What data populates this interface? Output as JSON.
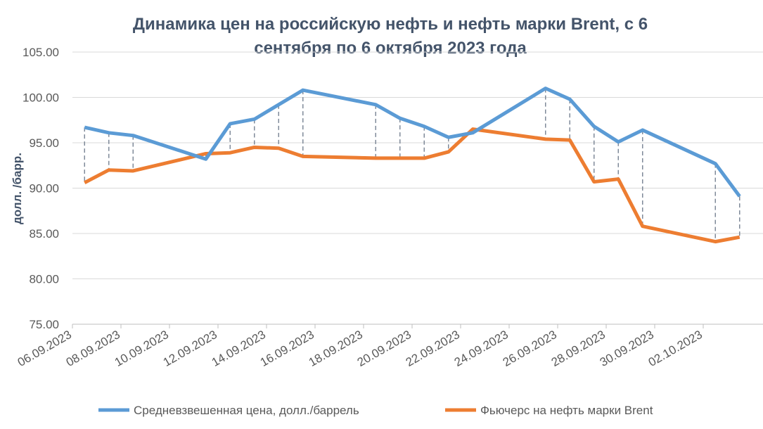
{
  "chart_data": {
    "type": "line",
    "title": "Динамика цен на российскую нефть и нефть марки Brent, с 6 сентября по 6 октября 2023 года",
    "ylabel": "долл. /барр.",
    "xlabel": "",
    "ylim": [
      75,
      105
    ],
    "yticks": [
      "75.00",
      "80.00",
      "85.00",
      "90.00",
      "95.00",
      "100.00",
      "105.00"
    ],
    "xlim": [
      "06.09.2023",
      "07.10.2023"
    ],
    "xticks": [
      "06.09.2023",
      "08.09.2023",
      "10.09.2023",
      "12.09.2023",
      "14.09.2023",
      "16.09.2023",
      "18.09.2023",
      "20.09.2023",
      "22.09.2023",
      "24.09.2023",
      "26.09.2023",
      "28.09.2023",
      "30.09.2023",
      "02.10.2023"
    ],
    "grid": "horizontal",
    "legend": "bottom",
    "x": [
      "06.09.2023",
      "07.09.2023",
      "08.09.2023",
      "11.09.2023",
      "12.09.2023",
      "13.09.2023",
      "14.09.2023",
      "15.09.2023",
      "18.09.2023",
      "19.09.2023",
      "20.09.2023",
      "21.09.2023",
      "22.09.2023",
      "25.09.2023",
      "26.09.2023",
      "27.09.2023",
      "28.09.2023",
      "29.09.2023",
      "02.10.2023",
      "03.10.2023"
    ],
    "series": [
      {
        "name": "Средневзвешенная цена, долл./баррель",
        "color": "#5b9bd5",
        "values": [
          96.7,
          96.1,
          95.8,
          93.2,
          97.1,
          97.6,
          99.2,
          100.8,
          99.2,
          97.7,
          96.8,
          95.6,
          96.1,
          101.0,
          99.8,
          96.8,
          95.1,
          96.4,
          92.7,
          89.1
        ]
      },
      {
        "name": "Фьючерс на нефть марки Brent",
        "color": "#ed7d31",
        "values": [
          90.6,
          92.0,
          91.9,
          93.8,
          93.9,
          94.5,
          94.4,
          93.5,
          93.3,
          93.3,
          93.3,
          94.0,
          96.5,
          95.4,
          95.3,
          90.7,
          91.0,
          85.8,
          84.1,
          84.6
        ]
      }
    ],
    "droplines": true
  }
}
